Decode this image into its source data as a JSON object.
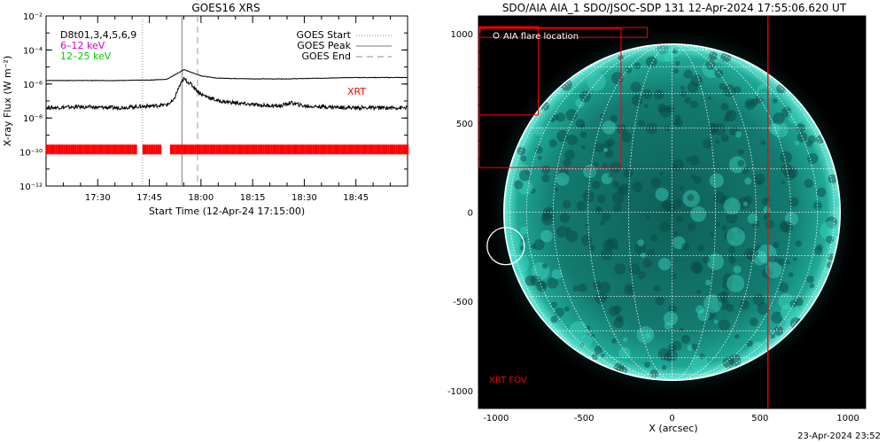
{
  "goes_panel": {
    "title": "GOES16 XRS",
    "instrument_list": "D8t01,3,4,5,6,9",
    "band_low": "6–12 keV",
    "band_high": "12–25 keV",
    "xlabel": "Start Time (12-Apr-24 17:15:00)",
    "ylabel": "X-ray Flux (W m⁻²)",
    "legend": [
      "GOES Start",
      "GOES Peak",
      "GOES End"
    ],
    "xrt_label": "XRT",
    "colors": {
      "band_low": "#cc00cc",
      "band_high": "#00cc00",
      "xrt": "#ff0000"
    }
  },
  "aia_panel": {
    "title": "SDO/AIA AIA_1 SDO/JSOC-SDP 131 12-Apr-2024 17:55:06.620 UT",
    "marker_label": "AIA flare location",
    "fov_label": "XRT FOV",
    "xlabel": "X (arcsec)",
    "colors": {
      "disk": "#2fc4b4",
      "fov": "#ff0000"
    }
  },
  "timestamp": "23-Apr-2024 23:52",
  "chart_data": [
    {
      "type": "line",
      "title": "GOES16 XRS",
      "xlabel": "Start Time (12-Apr-24 17:15:00)",
      "ylabel": "X-ray Flux (W m⁻²)",
      "y_scale": "log",
      "xlim_minutes": [
        0,
        105
      ],
      "ylim": [
        1e-12,
        0.01
      ],
      "x_ticks": [
        {
          "m": 15,
          "label": "17:30"
        },
        {
          "m": 30,
          "label": "17:45"
        },
        {
          "m": 45,
          "label": "18:00"
        },
        {
          "m": 60,
          "label": "18:15"
        },
        {
          "m": 75,
          "label": "18:30"
        },
        {
          "m": 90,
          "label": "18:45"
        }
      ],
      "y_ticks": [
        {
          "v": 0.01,
          "label": "10⁻²"
        },
        {
          "v": 0.0001,
          "label": "10⁻⁴"
        },
        {
          "v": 1e-06,
          "label": "10⁻⁶"
        },
        {
          "v": 1e-08,
          "label": "10⁻⁸"
        },
        {
          "v": 1e-10,
          "label": "10⁻¹⁰"
        },
        {
          "v": 1e-12,
          "label": "10⁻¹²"
        }
      ],
      "events_minutes": {
        "start": 28,
        "peak": 39.5,
        "end": 44
      },
      "series": [
        {
          "name": "6–12 keV",
          "color": "#000000",
          "points": [
            [
              0,
              1.6e-06
            ],
            [
              10,
              1.6e-06
            ],
            [
              20,
              1.6e-06
            ],
            [
              30,
              1.7e-06
            ],
            [
              35,
              1.9e-06
            ],
            [
              38,
              4e-06
            ],
            [
              40,
              7e-06
            ],
            [
              42,
              5e-06
            ],
            [
              45,
              3e-06
            ],
            [
              50,
              2.2e-06
            ],
            [
              60,
              2e-06
            ],
            [
              70,
              2e-06
            ],
            [
              80,
              2.2e-06
            ],
            [
              90,
              2.4e-06
            ],
            [
              105,
              2.4e-06
            ]
          ]
        },
        {
          "name": "12–25 keV",
          "color": "#000000",
          "points": [
            [
              0,
              4e-08
            ],
            [
              10,
              4.5e-08
            ],
            [
              20,
              4e-08
            ],
            [
              30,
              5e-08
            ],
            [
              35,
              6e-08
            ],
            [
              37,
              1e-07
            ],
            [
              38.5,
              6e-07
            ],
            [
              40,
              2e-06
            ],
            [
              42,
              1e-06
            ],
            [
              45,
              2.5e-07
            ],
            [
              50,
              1e-07
            ],
            [
              60,
              6e-08
            ],
            [
              68,
              5e-08
            ],
            [
              71,
              8e-08
            ],
            [
              75,
              5e-08
            ],
            [
              90,
              4e-08
            ],
            [
              105,
              4e-08
            ]
          ]
        }
      ],
      "xrt_coverage_minutes": [
        [
          0,
          26
        ],
        [
          28,
          33
        ],
        [
          36,
          105
        ]
      ],
      "xrt_level": 1.5e-10
    },
    {
      "type": "scatter",
      "xlabel": "X (arcsec)",
      "xlim": [
        -1100,
        1100
      ],
      "ylim": [
        -1100,
        1100
      ],
      "x_ticks": [
        -1000,
        -500,
        0,
        500,
        1000
      ],
      "y_ticks": [
        -1000,
        -500,
        0,
        500,
        1000
      ],
      "solar_radius_arcsec": 955,
      "flare_location": [
        -945,
        -190
      ],
      "xrt_fov_boxes": [
        [
          [
            -1095,
            -1090
          ],
          [
            1005,
            1030
          ]
        ],
        [
          [
            -1065,
            -1060
          ],
          [
            1025,
            1025
          ]
        ],
        [
          [
            -1095,
            -140
          ],
          [
            980,
            1035
          ]
        ],
        [
          [
            -1095,
            -760
          ],
          [
            545,
            1040
          ]
        ],
        [
          [
            -1095,
            -290
          ],
          [
            1030,
            250
          ]
        ]
      ]
    }
  ]
}
